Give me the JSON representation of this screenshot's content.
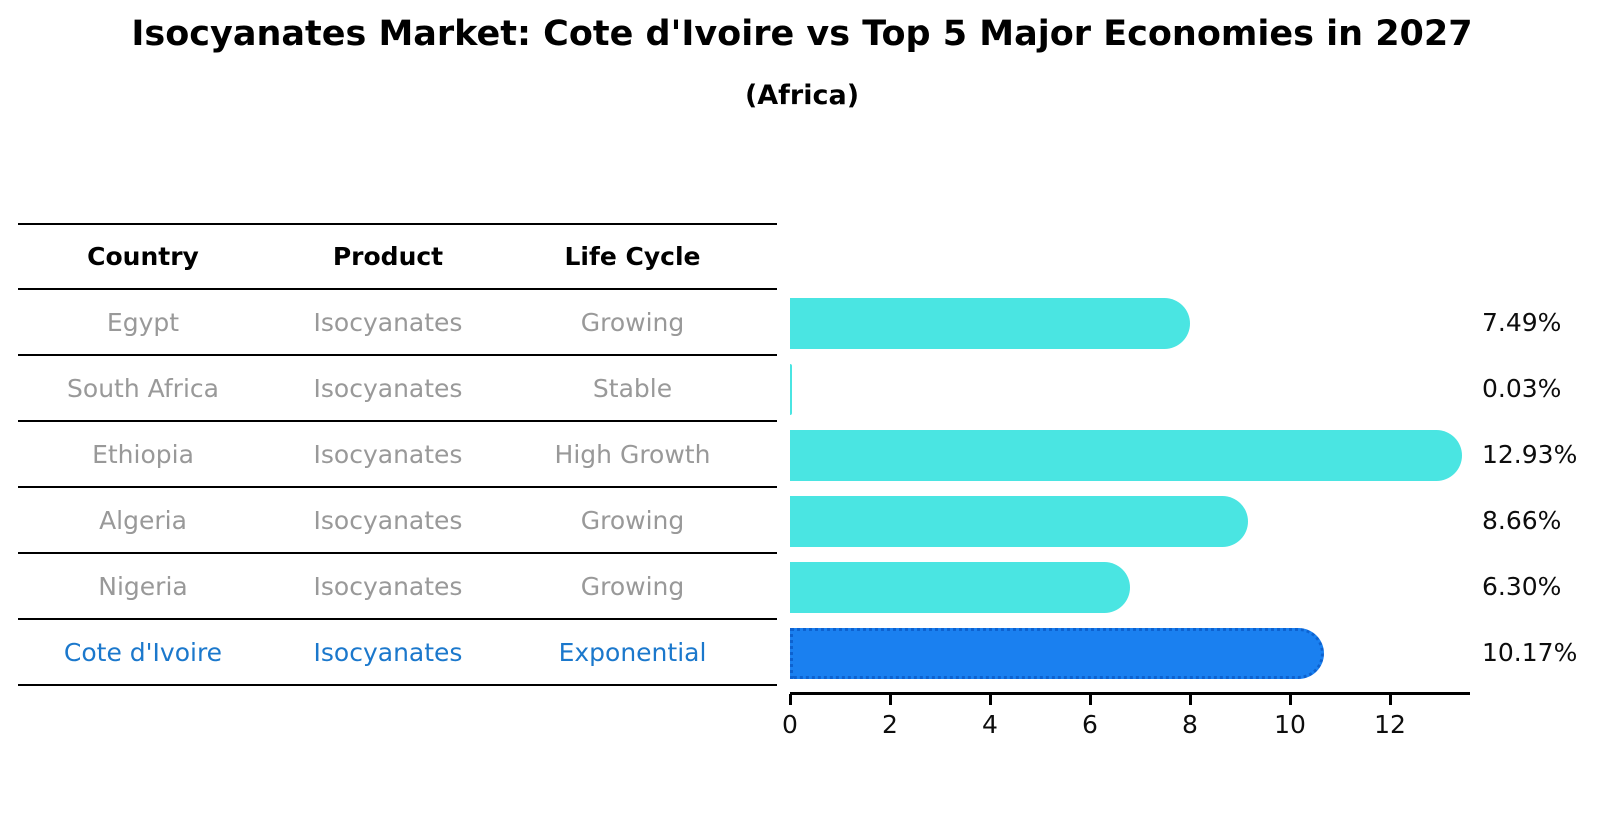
{
  "title": "Isocyanates Market: Cote d'Ivoire vs Top 5 Major Economies in 2027",
  "subtitle": "(Africa)",
  "table": {
    "headers": [
      "Country",
      "Product",
      "Life Cycle"
    ],
    "rows": [
      {
        "country": "Egypt",
        "product": "Isocyanates",
        "life_cycle": "Growing",
        "highlighted": false
      },
      {
        "country": "South Africa",
        "product": "Isocyanates",
        "life_cycle": "Stable",
        "highlighted": false
      },
      {
        "country": "Ethiopia",
        "product": "Isocyanates",
        "life_cycle": "High Growth",
        "highlighted": false
      },
      {
        "country": "Algeria",
        "product": "Isocyanates",
        "life_cycle": "Growing",
        "highlighted": false
      },
      {
        "country": "Nigeria",
        "product": "Isocyanates",
        "life_cycle": "Growing",
        "highlighted": false
      },
      {
        "country": "Cote d'Ivoire",
        "product": "Isocyanates",
        "life_cycle": "Exponential",
        "highlighted": true
      }
    ]
  },
  "chart_data": {
    "type": "bar",
    "orientation": "horizontal",
    "title": "Isocyanates Market: Cote d'Ivoire vs Top 5 Major Economies in 2027 (Africa)",
    "categories": [
      "Egypt",
      "South Africa",
      "Ethiopia",
      "Algeria",
      "Nigeria",
      "Cote d'Ivoire"
    ],
    "values": [
      7.49,
      0.03,
      12.93,
      8.66,
      6.3,
      10.17
    ],
    "value_labels": [
      "7.49%",
      "0.03%",
      "12.93%",
      "8.66%",
      "6.30%",
      "10.17%"
    ],
    "xlabel": "",
    "ylabel": "",
    "xlim": [
      0,
      13.6
    ],
    "x_ticks": [
      0,
      2,
      4,
      6,
      8,
      10,
      12
    ],
    "grid": false,
    "legend": "none",
    "highlight_index": 5
  },
  "colors": {
    "bar": "#4AE5E2",
    "highlight_bar": "#1A80F0",
    "highlight_bar_border": "#0D62D0",
    "highlight_text": "#1B78CC",
    "row_text": "#999999",
    "header_text": "#000000"
  }
}
